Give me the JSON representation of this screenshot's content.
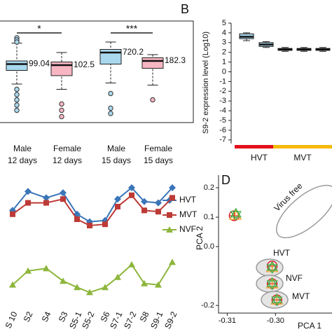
{
  "chart_data": [
    {
      "type": "box",
      "categories": [
        [
          "Male",
          "12 days"
        ],
        [
          "Female",
          "12 days"
        ],
        [
          "Male",
          "15 days"
        ],
        [
          "Female",
          "15 days"
        ]
      ],
      "colors": [
        "#a9d8ee",
        "#f7b6c2",
        "#a9d8ee",
        "#f7b6c2"
      ],
      "ylim": [
        0,
        100
      ],
      "boxes": [
        {
          "whislo": 40,
          "q1": 53,
          "med": 59,
          "q3": 62,
          "whishi": 79,
          "fliers": [
            84,
            82,
            80,
            35,
            30,
            25,
            20,
            15
          ]
        },
        {
          "whislo": 35,
          "q1": 48,
          "med": 58,
          "q3": 61,
          "whishi": 70,
          "fliers": [
            21,
            15,
            9
          ]
        },
        {
          "whislo": 41,
          "q1": 59,
          "med": 70,
          "q3": 73,
          "whishi": 80,
          "fliers": [
            31,
            17,
            12
          ]
        },
        {
          "whislo": 39,
          "q1": 55,
          "med": 62,
          "q3": 65,
          "whishi": 68,
          "fliers": [
            25
          ]
        }
      ],
      "annotations": [
        "99.04",
        "102.5",
        "720.2",
        "182.3"
      ],
      "significance": [
        {
          "label": "*",
          "pair": [
            0,
            1
          ]
        },
        {
          "label": "***",
          "pair": [
            2,
            3
          ]
        }
      ]
    },
    {
      "type": "box",
      "panel_label": "B",
      "ylabel": "S9-2 expression level (Log10)",
      "ylim": [
        -7,
        5
      ],
      "yticks": [
        5,
        4,
        3,
        2,
        1,
        0,
        -1,
        -2,
        -3,
        -4,
        -5,
        -6,
        -7
      ],
      "colors": [
        "#a9d8ee",
        "#a9d8ee",
        "#a9d8ee",
        "#a9d8ee",
        "#a9d8ee"
      ],
      "boxes": [
        {
          "whislo": 3.2,
          "q1": 3.4,
          "med": 3.6,
          "q3": 3.9,
          "whishi": 4.0,
          "fliers": []
        },
        {
          "whislo": 2.5,
          "q1": 2.6,
          "med": 2.8,
          "q3": 3.0,
          "whishi": 3.1,
          "fliers": []
        },
        {
          "whislo": 2.1,
          "q1": 2.2,
          "med": 2.3,
          "q3": 2.4,
          "whishi": 2.5,
          "fliers": []
        },
        {
          "whislo": 2.1,
          "q1": 2.2,
          "med": 2.3,
          "q3": 2.4,
          "whishi": 2.5,
          "fliers": []
        },
        {
          "whislo": 2.1,
          "q1": 2.2,
          "med": 2.3,
          "q3": 2.4,
          "whishi": 2.5,
          "fliers": []
        }
      ],
      "groups": [
        {
          "label": "HVT",
          "color": "#e3101c"
        },
        {
          "label": "MVT",
          "color": "#f6b90a"
        }
      ]
    },
    {
      "type": "line",
      "categories": [
        "S 10",
        "S2",
        "S4",
        "S3",
        "S5-1",
        "S5-2",
        "S6",
        "S7-1",
        "S7-2",
        "S8",
        "S9-1",
        "S9-2"
      ],
      "ylim": [
        0,
        100
      ],
      "legend": "right",
      "series": [
        {
          "name": "HVT",
          "color": "#3a75b8",
          "marker": "diamond",
          "values": [
            72,
            87,
            82,
            86,
            69,
            63,
            64,
            81,
            90,
            79,
            78,
            90
          ]
        },
        {
          "name": "MVT",
          "color": "#bd3a36",
          "marker": "square",
          "values": [
            69,
            78,
            78,
            81,
            65,
            60,
            61,
            75,
            84,
            72,
            71,
            82
          ]
        },
        {
          "name": "NVF",
          "color": "#8db63c",
          "marker": "triangle",
          "values": [
            13,
            24,
            26,
            16,
            11,
            7,
            11,
            19,
            29,
            14,
            13,
            31
          ]
        }
      ]
    },
    {
      "type": "scatter",
      "panel_label": "D",
      "xlabel": "PCA 1",
      "ylabel": "PCA 2",
      "xlim": [
        -0.3118,
        -0.2883
      ],
      "ylim": [
        -0.226,
        0.243
      ],
      "xticks": [
        {
          "value": -0.31,
          "label": "-0.31"
        },
        {
          "value": -0.3,
          "label": "-0.30"
        }
      ],
      "yticks": [
        0.2,
        0.1,
        {
          "value": 0,
          "label": "0.0"
        },
        -0.2
      ],
      "groups": [
        "Virus free",
        "HVT",
        "NVF",
        "MVT"
      ],
      "points": [
        {
          "x": -0.30856,
          "y": 0.105,
          "color": "#e3101c",
          "shape": "circle"
        },
        {
          "x": -0.30833,
          "y": 0.107,
          "color": "#f6a623",
          "shape": "triangle"
        },
        {
          "x": -0.30821,
          "y": 0.11,
          "color": "#3fae49",
          "shape": "star"
        },
        {
          "x": -0.30069,
          "y": -0.066,
          "color": "#e3101c",
          "shape": "circle"
        },
        {
          "x": -0.30069,
          "y": -0.071,
          "color": "#f6a623",
          "shape": "triangle"
        },
        {
          "x": -0.30069,
          "y": -0.071,
          "color": "#3fae49",
          "shape": "star"
        },
        {
          "x": -0.30069,
          "y": -0.126,
          "color": "#e3101c",
          "shape": "circle"
        },
        {
          "x": -0.30069,
          "y": -0.126,
          "color": "#f6a623",
          "shape": "triangle"
        },
        {
          "x": -0.30069,
          "y": -0.126,
          "color": "#3fae49",
          "shape": "star"
        },
        {
          "x": -0.29972,
          "y": -0.181,
          "color": "#e3101c",
          "shape": "circle"
        },
        {
          "x": -0.29972,
          "y": -0.181,
          "color": "#f6a623",
          "shape": "triangle"
        },
        {
          "x": -0.29972,
          "y": -0.181,
          "color": "#3fae49",
          "shape": "star"
        }
      ]
    }
  ]
}
